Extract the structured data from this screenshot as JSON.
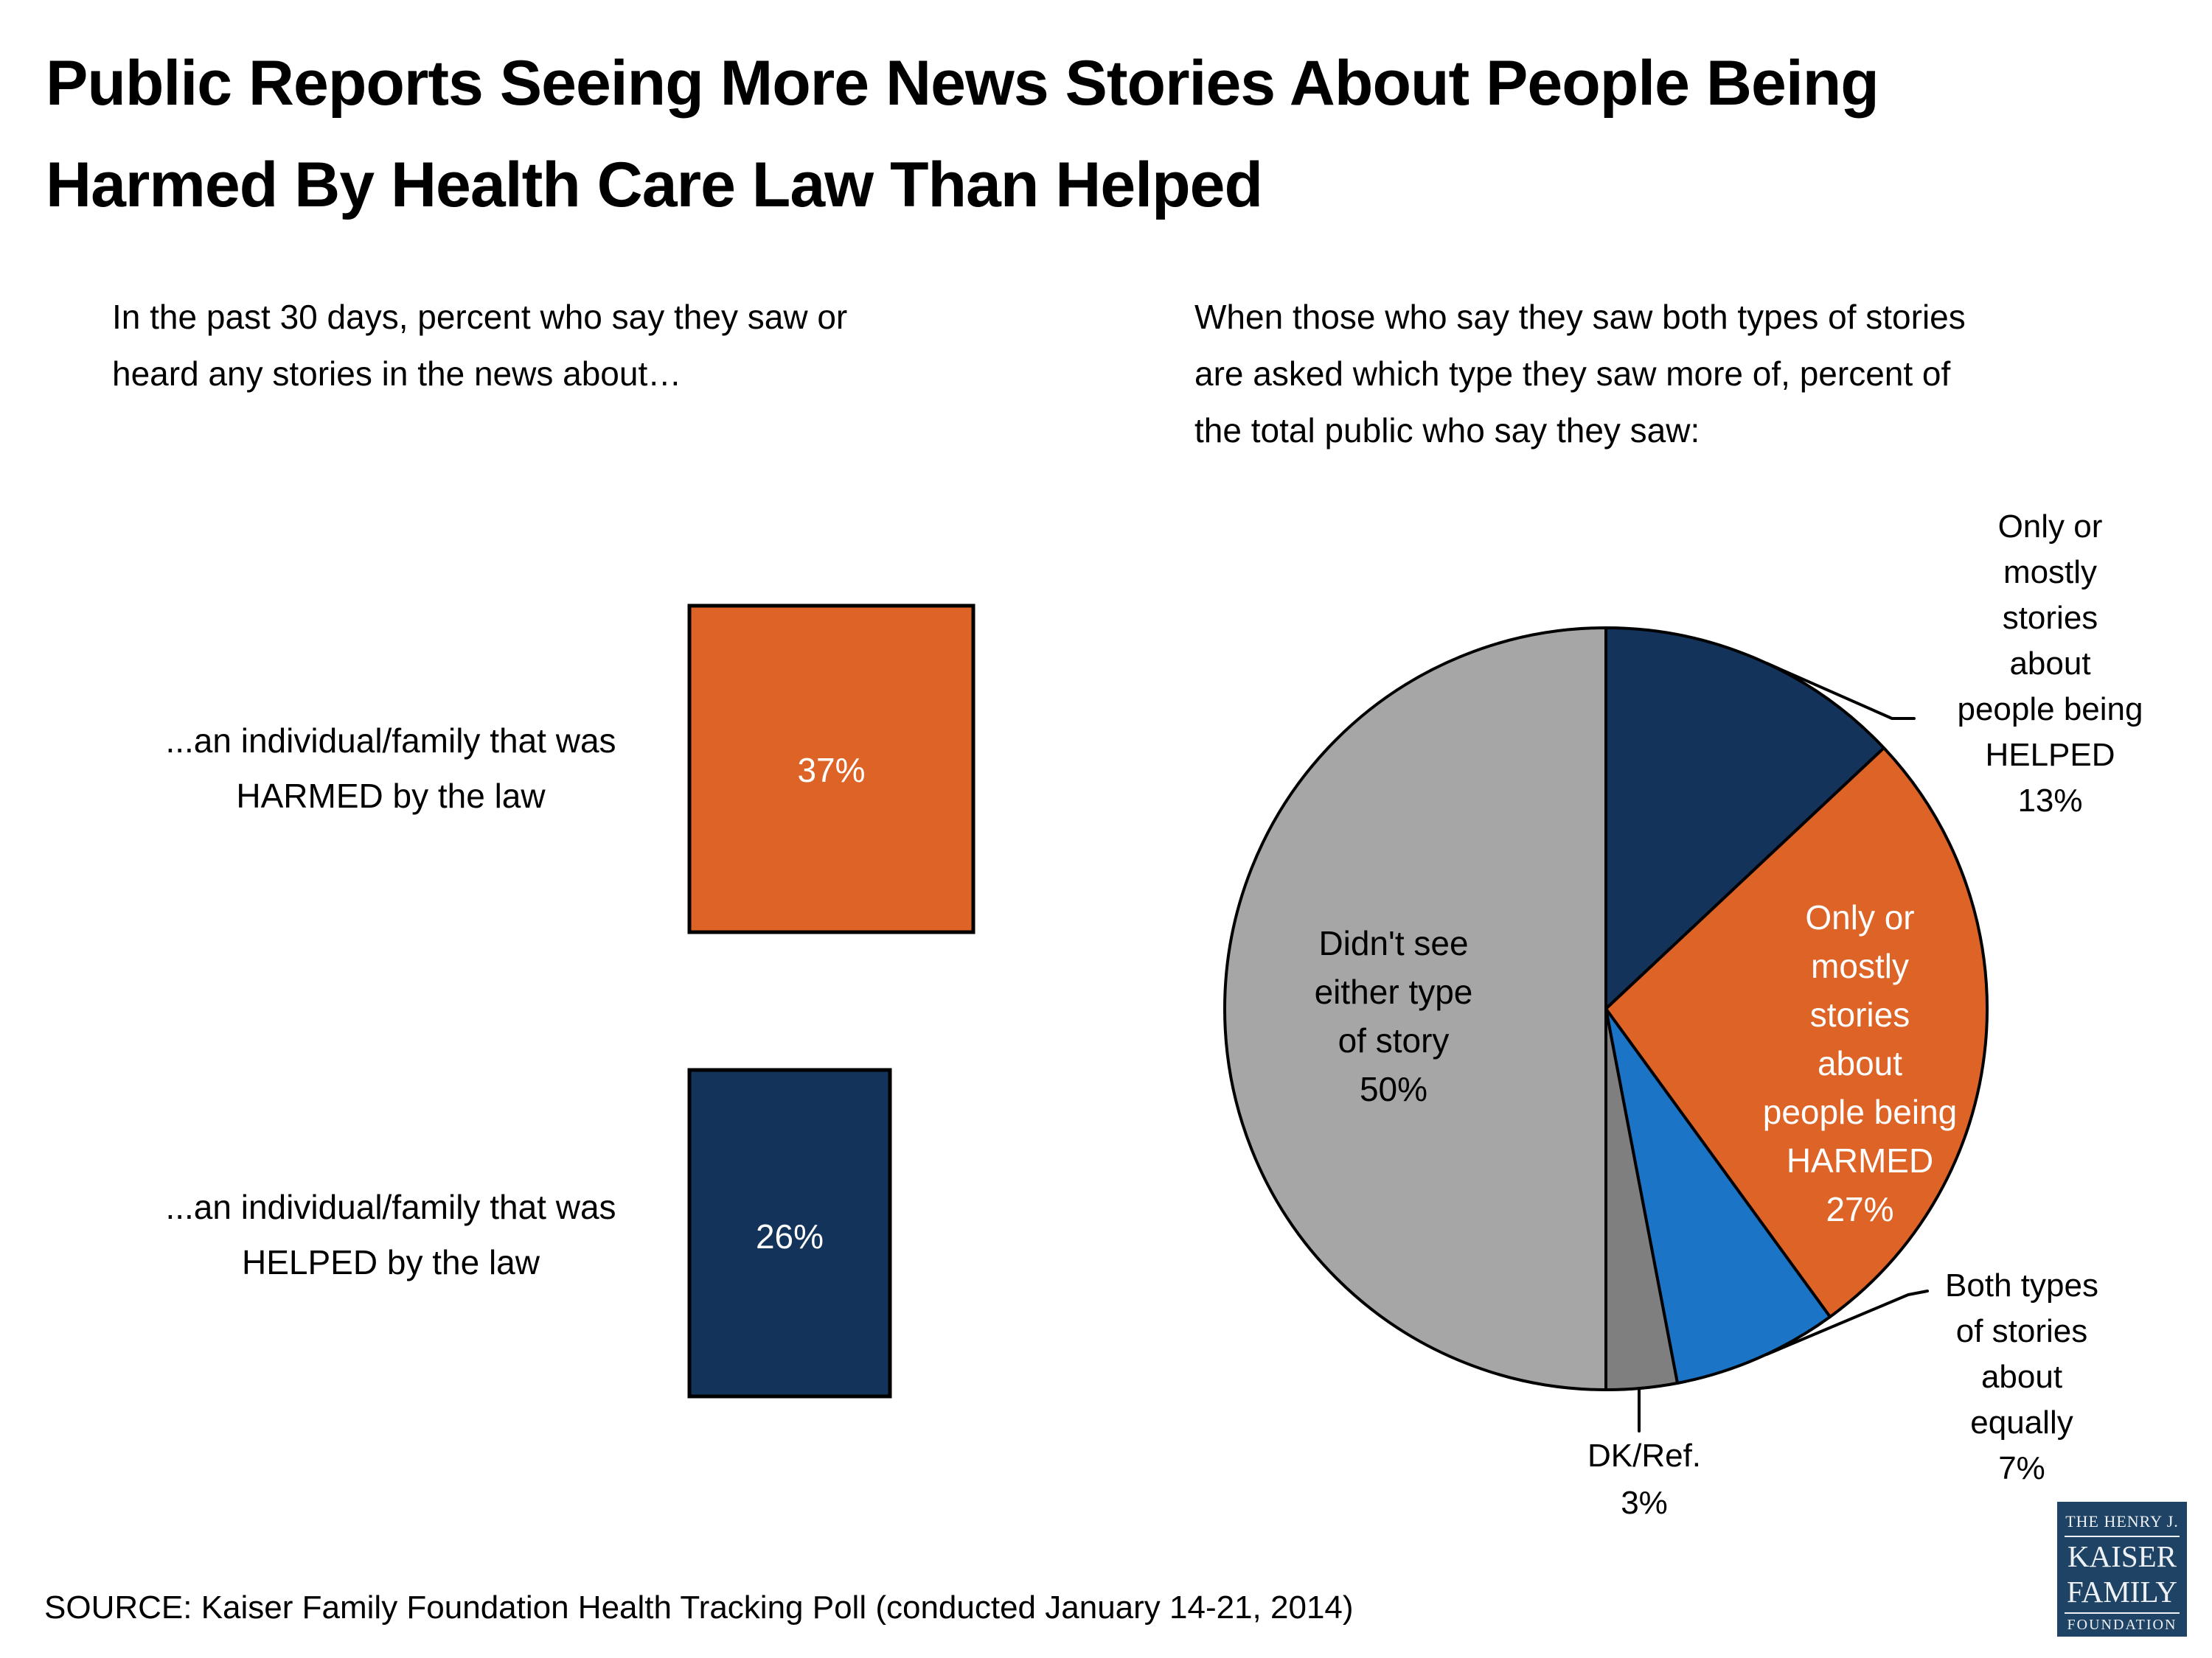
{
  "title": {
    "lines": [
      "Public Reports Seeing More News Stories About People Being",
      "Harmed By Health Care Law Than Helped"
    ]
  },
  "source": "SOURCE: Kaiser Family Foundation Health Tracking Poll (conducted January 14-21, 2014)",
  "colors": {
    "orange": "#DD6327",
    "navy": "#13335A",
    "blue": "#1B74C5",
    "light_gray": "#A6A6A6",
    "dark_gray": "#7F7F7F",
    "logo_navy": "#1E4364",
    "text": "#000000",
    "white": "#FFFFFF"
  },
  "bar_chart": {
    "subtitle_lines": [
      "In the past 30 days, percent who say they saw or",
      "heard any stories in the news about…"
    ],
    "bars": [
      {
        "label_lines": [
          "...an individual/family that was",
          "HARMED by the law"
        ],
        "value_label": "37%"
      },
      {
        "label_lines": [
          "...an individual/family that was",
          "HELPED by the law"
        ],
        "value_label": "26%"
      }
    ]
  },
  "pie_chart": {
    "subtitle_lines": [
      "When those who say they saw both types of stories",
      "are asked which type they saw more of, percent of",
      "the total public who say they saw:"
    ],
    "labels": {
      "didnt_see": {
        "lines": [
          "Didn't see",
          "either type",
          "of story",
          "50%"
        ]
      },
      "harmed": {
        "lines": [
          "Only or",
          "mostly",
          "stories",
          "about",
          "people being",
          "HARMED",
          "27%"
        ]
      },
      "helped": {
        "lines": [
          "Only or",
          "mostly",
          "stories",
          "about",
          "people being",
          "HELPED",
          "13%"
        ]
      },
      "both": {
        "lines": [
          "Both types",
          "of stories",
          "about",
          "equally",
          "7%"
        ]
      },
      "dk_ref": {
        "lines": [
          "DK/Ref.",
          "3%"
        ]
      }
    }
  },
  "logo": {
    "line1": "THE HENRY J.",
    "line2": "KAISER",
    "line3": "FAMILY",
    "line4": "FOUNDATION"
  },
  "chart_data": [
    {
      "type": "bar",
      "orientation": "horizontal",
      "title": "In the past 30 days, percent who say they saw or heard any stories in the news about…",
      "categories": [
        "...an individual/family that was HARMED by the law",
        "...an individual/family that was HELPED by the law"
      ],
      "values": [
        37,
        26
      ],
      "unit": "percent",
      "data_labels": [
        "37%",
        "26%"
      ],
      "colors": [
        "#DD6327",
        "#13335A"
      ],
      "axis": {
        "hidden": true,
        "xlim": [
          0,
          100
        ],
        "grid": false
      },
      "legend": "none"
    },
    {
      "type": "pie",
      "title": "When those who say they saw both types of stories are asked which type they saw more of, percent of the total public who say they saw:",
      "labels": [
        "Only or mostly stories about people being HELPED",
        "Only or mostly stories about people being HARMED",
        "Both types of stories about equally",
        "DK/Ref.",
        "Didn't see either type of story"
      ],
      "values": [
        13,
        27,
        7,
        3,
        50
      ],
      "colors": [
        "#13335A",
        "#DD6327",
        "#1B74C5",
        "#7F7F7F",
        "#A6A6A6"
      ],
      "start_angle_deg": 0,
      "direction": "clockwise",
      "legend": "none"
    }
  ]
}
